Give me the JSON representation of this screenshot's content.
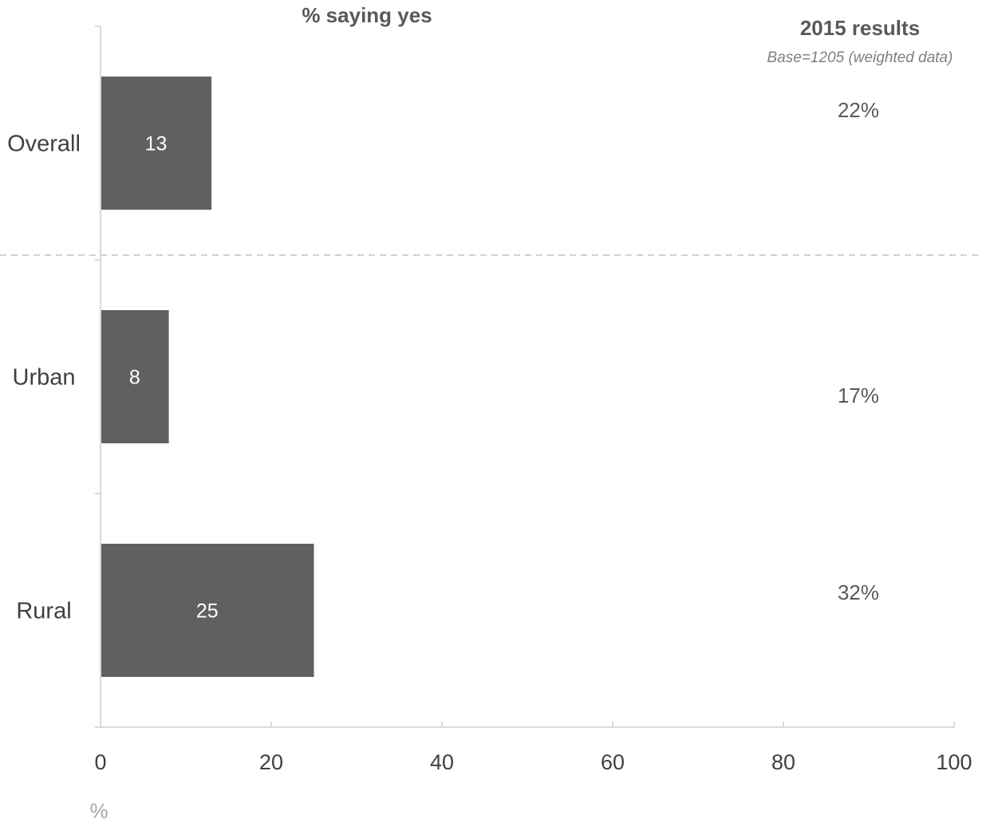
{
  "chart_data": {
    "type": "bar",
    "orientation": "horizontal",
    "title": "% saying yes",
    "categories": [
      "Overall",
      "Urban",
      "Rural"
    ],
    "values": [
      13,
      8,
      25
    ],
    "xlim": [
      0,
      100
    ],
    "xticks": [
      0,
      20,
      40,
      60,
      80,
      100
    ],
    "xlabel": "%",
    "grid": false,
    "bar_color": "#606060",
    "separator_after": "Overall",
    "comparison": {
      "title": "2015 results",
      "subtitle": "Base=1205 (weighted data)",
      "values": [
        "22%",
        "17%",
        "32%"
      ]
    }
  }
}
